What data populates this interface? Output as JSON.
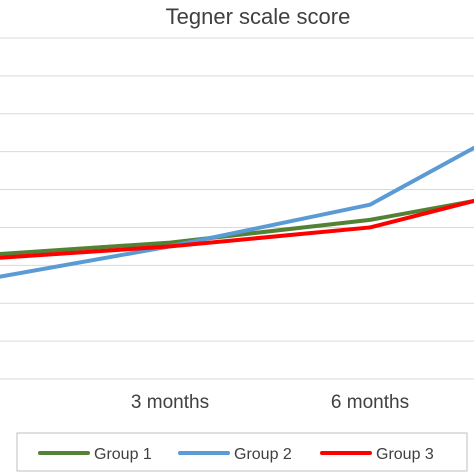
{
  "chart_data": {
    "type": "line",
    "title": "Tegner scale score",
    "categories": [
      "",
      "3 months",
      "6 months",
      ""
    ],
    "ylim": [
      0,
      9
    ],
    "grid": true,
    "legend_position": "bottom",
    "series": [
      {
        "name": "Group 1",
        "color": "#548235",
        "values": [
          3.3,
          3.6,
          4.2,
          4.7
        ]
      },
      {
        "name": "Group 2",
        "color": "#5B9BD5",
        "values": [
          2.7,
          3.5,
          4.6,
          6.1
        ]
      },
      {
        "name": "Group 3",
        "color": "#FF0000",
        "values": [
          3.2,
          3.5,
          4.0,
          4.7
        ]
      }
    ]
  }
}
